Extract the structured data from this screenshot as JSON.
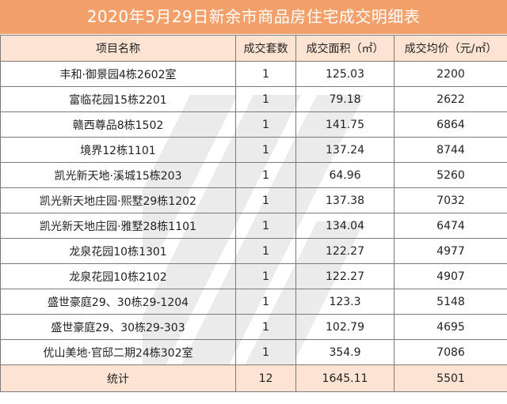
{
  "title": "2020年5月29日新余市商品房住宅成交明细表",
  "colors": {
    "title_background": "#f4a06a",
    "header_background": "#fde3d2",
    "title_text": "#ffffff"
  },
  "watermark": {
    "icon": "diagonal-stripes-logo"
  },
  "table": {
    "headers": {
      "name": "项目名称",
      "count": "成交套数",
      "area": "成交面积（㎡）",
      "price": "成交均价（元/㎡）"
    },
    "rows": [
      {
        "name": "丰和·御景园4栋2602室",
        "count": "1",
        "area": "125.03",
        "price": "2200"
      },
      {
        "name": "富临花园15栋2201",
        "count": "1",
        "area": "79.18",
        "price": "2622"
      },
      {
        "name": "赣西尊品8栋1502",
        "count": "1",
        "area": "141.75",
        "price": "6864"
      },
      {
        "name": "境界12栋1101",
        "count": "1",
        "area": "137.24",
        "price": "8744"
      },
      {
        "name": "凯光新天地·溪城15栋203",
        "count": "1",
        "area": "64.96",
        "price": "5260"
      },
      {
        "name": "凯光新天地庄园·熙墅29栋1202",
        "count": "1",
        "area": "137.38",
        "price": "7032"
      },
      {
        "name": "凯光新天地庄园·雅墅28栋1101",
        "count": "1",
        "area": "134.04",
        "price": "6474"
      },
      {
        "name": "龙泉花园10栋1301",
        "count": "1",
        "area": "122.27",
        "price": "4977"
      },
      {
        "name": "龙泉花园10栋2102",
        "count": "1",
        "area": "122.27",
        "price": "4907"
      },
      {
        "name": "盛世豪庭29、30栋29-1204",
        "count": "1",
        "area": "123.3",
        "price": "5148"
      },
      {
        "name": "盛世豪庭29、30栋29-303",
        "count": "1",
        "area": "102.79",
        "price": "4695"
      },
      {
        "name": "优山美地·官邸二期24栋302室",
        "count": "1",
        "area": "354.9",
        "price": "7086"
      }
    ],
    "total": {
      "label": "统计",
      "count": "12",
      "area": "1645.11",
      "price": "5501"
    }
  }
}
